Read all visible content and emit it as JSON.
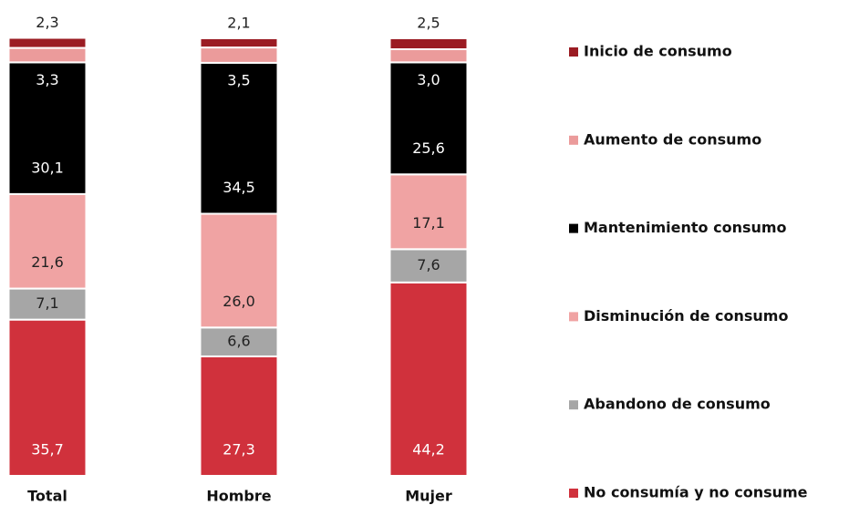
{
  "chart_data": {
    "type": "stacked_bar",
    "categories": [
      "Total",
      "Hombre",
      "Mujer"
    ],
    "ylim": [
      0,
      100
    ],
    "series": [
      {
        "name": "No consumía y no consume",
        "color": "#d0313c",
        "label_color": "#ffffff",
        "values": [
          35.7,
          27.3,
          44.2
        ],
        "value_labels": [
          "35,7",
          "27,3",
          "44,2"
        ]
      },
      {
        "name": "Abandono de consumo",
        "color": "#a6a6a6",
        "label_color": "#222222",
        "values": [
          7.1,
          6.6,
          7.6
        ],
        "value_labels": [
          "7,1",
          "6,6",
          "7,6"
        ]
      },
      {
        "name": "Disminución de consumo",
        "color": "#f0a3a3",
        "label_color": "#222222",
        "values": [
          21.6,
          26.0,
          17.1
        ],
        "value_labels": [
          "21,6",
          "26,0",
          "17,1"
        ]
      },
      {
        "name": "Mantenimiento consumo",
        "color": "#000000",
        "label_color": "#ffffff",
        "values": [
          30.1,
          34.5,
          25.6
        ],
        "value_labels": [
          "30,1",
          "34,5",
          "25,6"
        ]
      },
      {
        "name": "Aumento de consumo",
        "color": "#eb9b9b",
        "label_color": "#ffffff",
        "values": [
          3.3,
          3.5,
          3.0
        ],
        "value_labels": [
          "3,3",
          "3,5",
          "3,0"
        ]
      },
      {
        "name": "Inicio de consumo",
        "color": "#9b1c23",
        "label_color": "#222222",
        "values": [
          2.3,
          2.1,
          2.5
        ],
        "value_labels": [
          "2,3",
          "2,1",
          "2,5"
        ]
      }
    ]
  }
}
